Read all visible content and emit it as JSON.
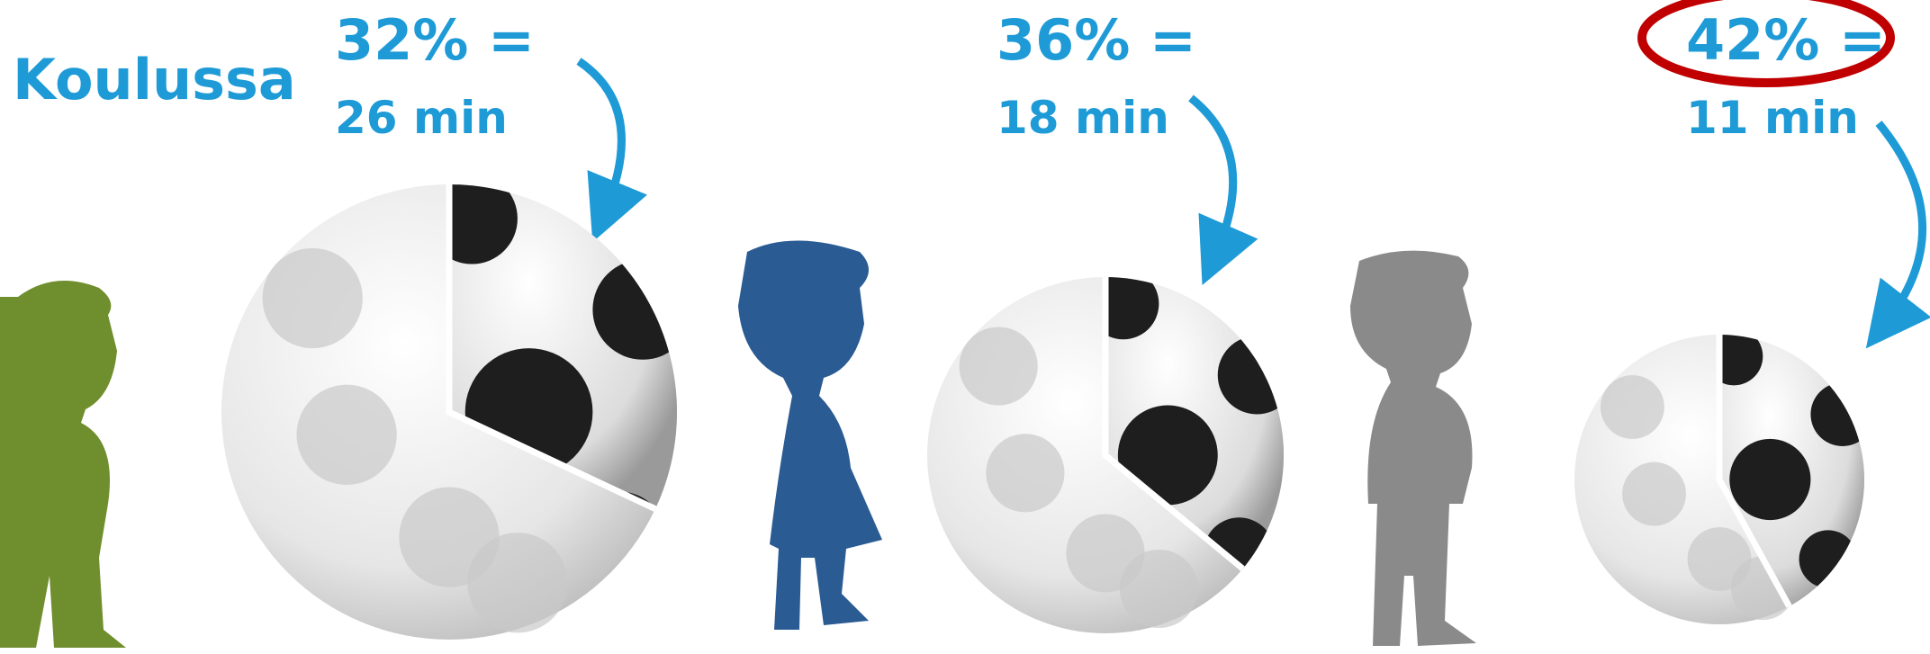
{
  "title": "Koulussa",
  "items": [
    {
      "percent": 32,
      "percent_label": "32% =",
      "time": "26 min"
    },
    {
      "percent": 36,
      "percent_label": "36% =",
      "time": "18 min"
    },
    {
      "percent": 42,
      "percent_label": "42% =",
      "time": "11 min"
    }
  ]
}
